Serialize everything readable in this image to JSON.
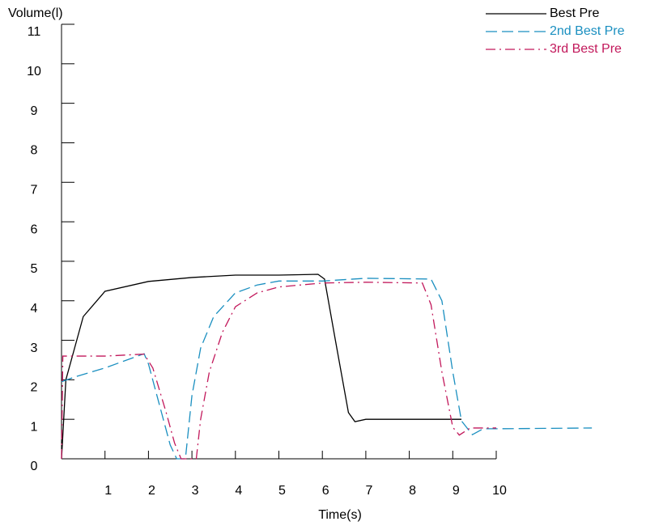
{
  "chart_data": {
    "type": "line",
    "y_label": "Volume(l)",
    "x_label": "Time(s)",
    "xlim": [
      0,
      10
    ],
    "ylim": [
      0,
      11
    ],
    "xticks": [
      1,
      2,
      3,
      4,
      5,
      6,
      7,
      8,
      9,
      10
    ],
    "yticks": [
      0,
      1,
      2,
      3,
      4,
      5,
      6,
      7,
      8,
      9,
      10,
      11
    ],
    "legend": "top-right",
    "series": [
      {
        "name": "Best Pre",
        "color": "#000000",
        "dash": "solid",
        "x": [
          0,
          0.1,
          0.5,
          1,
          2,
          3,
          4,
          5,
          5.9,
          6.05,
          6.3,
          6.6,
          6.75,
          7,
          9.2
        ],
        "values": [
          0,
          2.0,
          3.6,
          4.24,
          4.49,
          4.59,
          4.65,
          4.65,
          4.67,
          4.55,
          3.0,
          1.17,
          0.94,
          1.0,
          1.0
        ]
      },
      {
        "name": "2nd Best Pre",
        "color": "#1a8fc0",
        "dash": "long",
        "x": [
          0,
          0.3,
          1,
          1.9,
          2.0,
          2.3,
          2.5,
          2.65,
          2.85,
          3.0,
          3.2,
          3.5,
          4,
          4.5,
          5,
          6,
          7,
          8.5,
          8.75,
          9,
          9.2,
          9.45,
          9.7,
          10,
          12.2
        ],
        "values": [
          1.95,
          2.07,
          2.3,
          2.66,
          2.4,
          1.17,
          0.35,
          0,
          0,
          1.6,
          2.8,
          3.6,
          4.2,
          4.4,
          4.5,
          4.5,
          4.57,
          4.55,
          4.0,
          2.2,
          0.96,
          0.61,
          0.76,
          0.76,
          0.78
        ]
      },
      {
        "name": "3rd Best Pre",
        "color": "#c2185b",
        "dash": "dashdot",
        "x": [
          0,
          0.03,
          1,
          1.9,
          2.1,
          2.4,
          2.6,
          2.75,
          3.1,
          3.2,
          3.4,
          3.7,
          4,
          4.5,
          5,
          6,
          7,
          8.3,
          8.5,
          8.75,
          9,
          9.15,
          9.4,
          10
        ],
        "values": [
          0,
          2.6,
          2.6,
          2.65,
          2.3,
          1.2,
          0.4,
          0,
          0,
          1.0,
          2.2,
          3.2,
          3.85,
          4.2,
          4.35,
          4.45,
          4.47,
          4.45,
          3.9,
          2.2,
          0.8,
          0.6,
          0.78,
          0.78
        ]
      }
    ]
  }
}
